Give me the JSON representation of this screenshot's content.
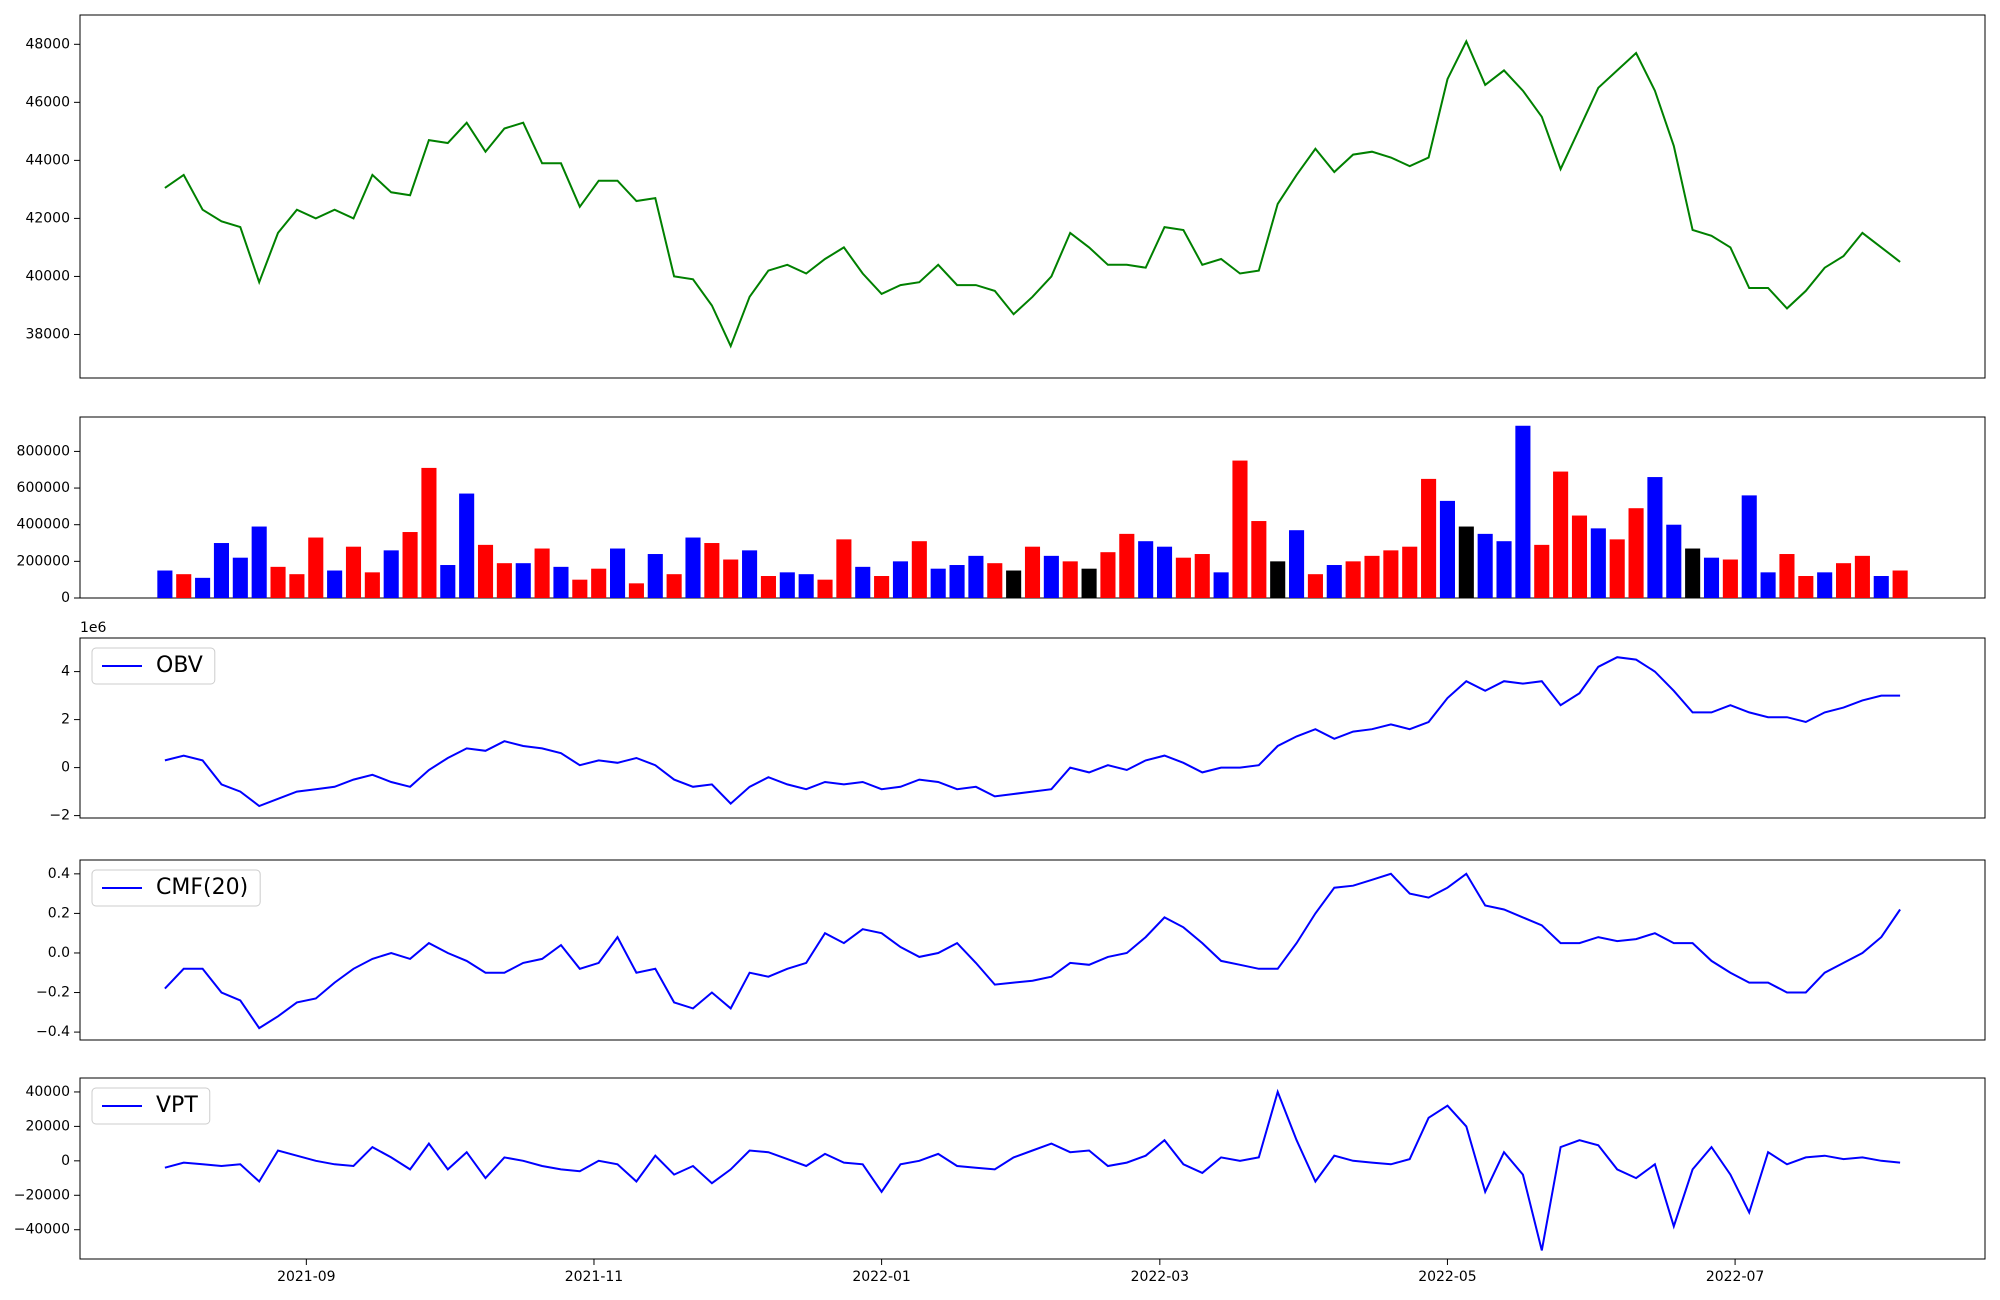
{
  "chart_data": [
    {
      "type": "line",
      "series": [
        {
          "color": "green",
          "values": [
            43050,
            43500,
            42300,
            41900,
            41700,
            39800,
            41500,
            42300,
            42000,
            42300,
            42000,
            43500,
            42900,
            42800,
            44700,
            44600,
            45300,
            44300,
            45100,
            45300,
            43900,
            43900,
            42400,
            43300,
            43300,
            42600,
            42700,
            40000,
            39900,
            39000,
            37600,
            39300,
            40200,
            40400,
            40100,
            40600,
            41000,
            40100,
            39400,
            39700,
            39800,
            40400,
            39700,
            39700,
            39500,
            38700,
            39300,
            40000,
            41500,
            41000,
            40400,
            40400,
            40300,
            41700,
            41600,
            40400,
            40600,
            40100,
            40200,
            42500,
            43500,
            44400,
            43600,
            44200,
            44300,
            44100,
            43800,
            44100,
            46800,
            48100,
            46600,
            47100,
            46400,
            45500,
            43700,
            45100,
            46500,
            47100,
            47700,
            46400,
            44500,
            41600,
            41400,
            41000,
            39600,
            39600,
            38900,
            39500,
            40300,
            40700,
            41500,
            41000,
            40500
          ]
        }
      ],
      "ylim": [
        36500,
        49010
      ],
      "yticks": [
        38000,
        40000,
        42000,
        44000,
        46000,
        48000
      ]
    },
    {
      "type": "bar",
      "values": [
        150000,
        130000,
        110000,
        300000,
        220000,
        390000,
        170000,
        130000,
        330000,
        150000,
        280000,
        140000,
        260000,
        360000,
        710000,
        180000,
        570000,
        290000,
        190000,
        190000,
        270000,
        170000,
        100000,
        160000,
        270000,
        80000,
        240000,
        130000,
        330000,
        300000,
        210000,
        260000,
        120000,
        140000,
        130000,
        100000,
        320000,
        170000,
        120000,
        200000,
        310000,
        160000,
        180000,
        230000,
        190000,
        150000,
        280000,
        230000,
        200000,
        160000,
        250000,
        350000,
        310000,
        280000,
        220000,
        240000,
        140000,
        750000,
        420000,
        200000,
        370000,
        130000,
        180000,
        200000,
        230000,
        260000,
        280000,
        650000,
        530000,
        390000,
        350000,
        310000,
        940000,
        290000,
        690000,
        450000,
        380000,
        320000,
        490000,
        660000,
        400000,
        270000,
        220000,
        210000,
        560000,
        140000,
        240000,
        120000,
        140000,
        190000,
        230000,
        120000,
        150000
      ],
      "colors": [
        "blue",
        "red",
        "blue",
        "blue",
        "blue",
        "blue",
        "red",
        "red",
        "red",
        "blue",
        "red",
        "red",
        "blue",
        "red",
        "red",
        "blue",
        "blue",
        "red",
        "red",
        "blue",
        "red",
        "blue",
        "red",
        "red",
        "blue",
        "red",
        "blue",
        "red",
        "blue",
        "red",
        "red",
        "blue",
        "red",
        "blue",
        "blue",
        "red",
        "red",
        "blue",
        "red",
        "blue",
        "red",
        "blue",
        "blue",
        "blue",
        "red",
        "black",
        "red",
        "blue",
        "red",
        "black",
        "red",
        "red",
        "blue",
        "blue",
        "red",
        "red",
        "blue",
        "red",
        "red",
        "black",
        "blue",
        "red",
        "blue",
        "red",
        "red",
        "red",
        "red",
        "red",
        "blue",
        "black",
        "blue",
        "blue",
        "blue",
        "red",
        "red",
        "red",
        "blue",
        "red",
        "red",
        "blue",
        "blue",
        "black",
        "blue",
        "red",
        "blue",
        "blue",
        "red",
        "red",
        "blue",
        "red",
        "red",
        "blue",
        "red"
      ],
      "ylim": [
        0,
        987800
      ],
      "yticks": [
        0,
        200000,
        400000,
        600000,
        800000
      ]
    },
    {
      "type": "line",
      "offset_label": "1e6",
      "legend": "upper left",
      "series": [
        {
          "name": "OBV",
          "color": "blue",
          "values": [
            0.3,
            0.5,
            0.3,
            -0.7,
            -1.0,
            -1.6,
            -1.3,
            -1.0,
            -0.9,
            -0.8,
            -0.5,
            -0.3,
            -0.6,
            -0.8,
            -0.1,
            0.4,
            0.8,
            0.7,
            1.1,
            0.9,
            0.8,
            0.6,
            0.1,
            0.3,
            0.2,
            0.4,
            0.1,
            -0.5,
            -0.8,
            -0.7,
            -1.5,
            -0.8,
            -0.4,
            -0.7,
            -0.9,
            -0.6,
            -0.7,
            -0.6,
            -0.9,
            -0.8,
            -0.5,
            -0.6,
            -0.9,
            -0.8,
            -1.2,
            -1.1,
            -1.0,
            -0.9,
            0.0,
            -0.2,
            0.1,
            -0.1,
            0.3,
            0.5,
            0.2,
            -0.2,
            0.0,
            0.0,
            0.1,
            0.9,
            1.3,
            1.6,
            1.2,
            1.5,
            1.6,
            1.8,
            1.6,
            1.9,
            2.9,
            3.6,
            3.2,
            3.6,
            3.5,
            3.6,
            2.6,
            3.1,
            4.2,
            4.6,
            4.5,
            4.0,
            3.2,
            2.3,
            2.3,
            2.6,
            2.3,
            2.1,
            2.1,
            1.9,
            2.3,
            2.5,
            2.8,
            3.0,
            3.0
          ]
        }
      ],
      "ylim": [
        -2.1,
        5.4
      ],
      "yticks": [
        {
          "value": -2,
          "label": "−2"
        },
        0,
        2,
        4
      ]
    },
    {
      "type": "line",
      "legend": "upper left",
      "series": [
        {
          "name": "CMF(20)",
          "color": "blue",
          "values": [
            -0.18,
            -0.08,
            -0.08,
            -0.2,
            -0.24,
            -0.38,
            -0.32,
            -0.25,
            -0.23,
            -0.15,
            -0.08,
            -0.03,
            0.0,
            -0.03,
            0.05,
            0.0,
            -0.04,
            -0.1,
            -0.1,
            -0.05,
            -0.03,
            0.04,
            -0.08,
            -0.05,
            0.08,
            -0.1,
            -0.08,
            -0.25,
            -0.28,
            -0.2,
            -0.28,
            -0.1,
            -0.12,
            -0.08,
            -0.05,
            0.1,
            0.05,
            0.12,
            0.1,
            0.03,
            -0.02,
            0.0,
            0.05,
            -0.05,
            -0.16,
            -0.15,
            -0.14,
            -0.12,
            -0.05,
            -0.06,
            -0.02,
            0.0,
            0.08,
            0.18,
            0.13,
            0.05,
            -0.04,
            -0.06,
            -0.08,
            -0.08,
            0.05,
            0.2,
            0.33,
            0.34,
            0.37,
            0.4,
            0.3,
            0.28,
            0.33,
            0.4,
            0.24,
            0.22,
            0.18,
            0.14,
            0.05,
            0.05,
            0.08,
            0.06,
            0.07,
            0.1,
            0.05,
            0.05,
            -0.04,
            -0.1,
            -0.15,
            -0.15,
            -0.2,
            -0.2,
            -0.1,
            -0.05,
            0.0,
            0.08,
            0.22
          ]
        }
      ],
      "ylim": [
        -0.44,
        0.47
      ],
      "yticks": [
        {
          "value": -0.4,
          "label": "−0.4"
        },
        {
          "value": -0.2,
          "label": "−0.2"
        },
        {
          "value": 0,
          "label": "0.0"
        },
        0.2,
        0.4
      ]
    },
    {
      "type": "line",
      "legend": "upper left",
      "series": [
        {
          "name": "VPT",
          "color": "blue",
          "values": [
            -4000,
            -1000,
            -2000,
            -3000,
            -2000,
            -12000,
            6000,
            3000,
            0,
            -2000,
            -3000,
            8000,
            2000,
            -5000,
            10000,
            -5000,
            5000,
            -10000,
            2000,
            0,
            -3000,
            -5000,
            -6000,
            0,
            -2000,
            -12000,
            3000,
            -8000,
            -3000,
            -13000,
            -5000,
            6000,
            5000,
            1000,
            -3000,
            4000,
            -1000,
            -2000,
            -18000,
            -2000,
            0,
            4000,
            -3000,
            -4000,
            -5000,
            2000,
            6000,
            10000,
            5000,
            6000,
            -3000,
            -1000,
            3000,
            12000,
            -2000,
            -7000,
            2000,
            0,
            2000,
            40000,
            12000,
            -12000,
            3000,
            0,
            -1000,
            -2000,
            1000,
            25000,
            32000,
            20000,
            -18000,
            5000,
            -8000,
            -52000,
            8000,
            12000,
            9000,
            -5000,
            -10000,
            -2000,
            -38000,
            -5000,
            8000,
            -8000,
            -30000,
            5000,
            -2000,
            2000,
            3000,
            1000,
            2000,
            0,
            -1000
          ]
        }
      ],
      "ylim": [
        -57000,
        48100
      ],
      "yticks": [
        {
          "value": -40000,
          "label": "−40000"
        },
        {
          "value": -20000,
          "label": "−20000"
        },
        0,
        20000,
        40000
      ],
      "x": [
        1,
        5,
        9,
        13,
        17,
        21,
        25,
        29,
        33,
        37,
        41,
        45,
        49,
        53,
        57,
        61,
        65,
        69,
        73,
        77,
        81,
        85,
        89,
        93,
        97,
        101,
        105,
        109,
        113,
        117,
        121,
        125,
        129,
        133,
        137,
        141,
        145,
        149,
        153,
        157,
        161,
        165,
        169,
        173,
        177,
        181,
        185,
        189,
        193,
        197,
        201,
        205,
        209,
        213,
        217,
        221,
        225,
        229,
        233,
        237,
        241,
        245,
        249,
        253,
        257,
        261,
        265,
        269,
        273,
        277,
        281,
        285,
        289,
        293,
        297,
        301,
        305,
        309,
        313,
        317,
        321,
        325,
        329,
        333,
        337,
        341,
        345,
        349,
        353,
        357,
        361,
        365,
        369
      ],
      "xlim": [
        -17,
        387
      ],
      "xticks": [
        {
          "value": 31,
          "label": "2021-09"
        },
        {
          "value": 92,
          "label": "2021-11"
        },
        {
          "value": 153,
          "label": "2022-01"
        },
        {
          "value": 212,
          "label": "2022-03"
        },
        {
          "value": 273,
          "label": "2022-05"
        },
        {
          "value": 334,
          "label": "2022-07"
        }
      ]
    }
  ]
}
